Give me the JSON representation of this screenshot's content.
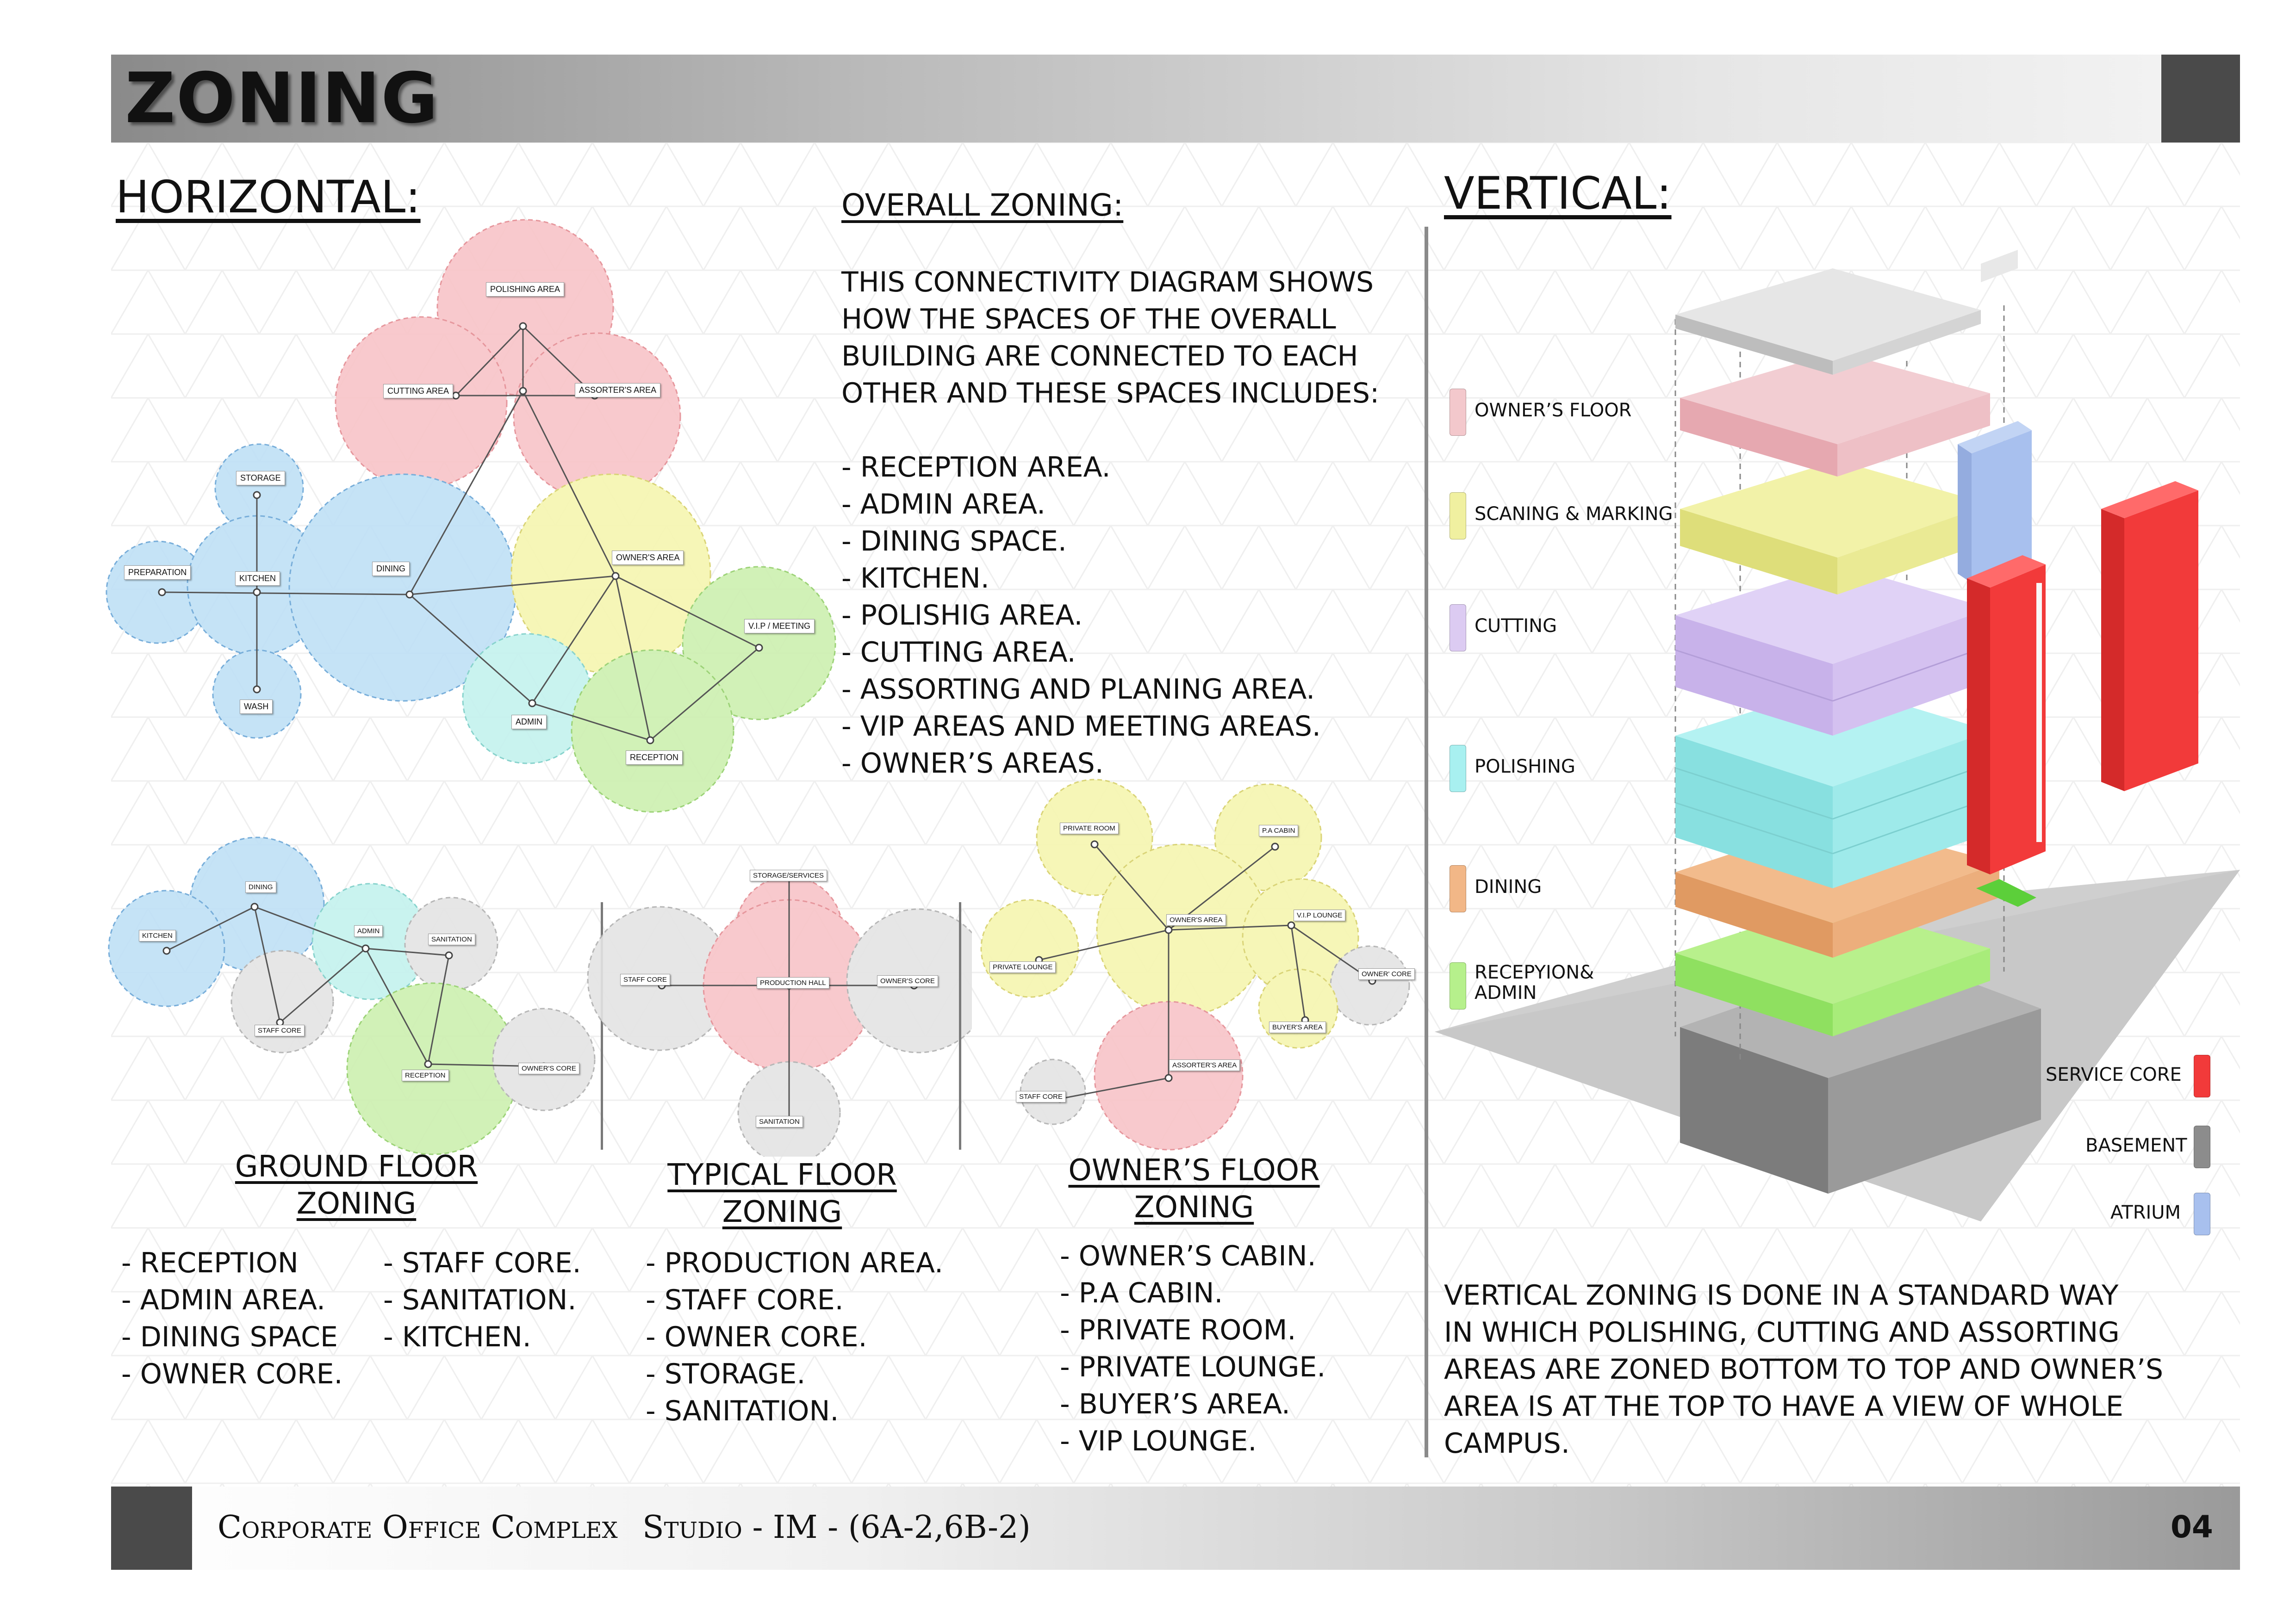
{
  "header": {
    "title": "ZONING"
  },
  "horizontal": {
    "heading": "HORIZONTAL:",
    "overall": {
      "title": "OVERALL ZONING:",
      "paragraph": "THIS CONNECTIVITY DIAGRAM SHOWS\nHOW THE SPACES OF THE OVERALL\nBUILDING ARE CONNECTED TO EACH\nOTHER AND THESE SPACES INCLUDES:",
      "items": [
        "- RECEPTION AREA.",
        "- ADMIN AREA.",
        "- DINING SPACE.",
        "- KITCHEN.",
        "- POLISHIG AREA.",
        "- CUTTING AREA.",
        "- ASSORTING AND PLANING AREA.",
        "- VIP AREAS AND MEETING AREAS.",
        "- OWNER’S AREAS."
      ]
    },
    "overall_diagram": {
      "labels": {
        "polishing": "POLISHING AREA",
        "cutting": "CUTTING AREA",
        "assorter": "ASSORTER'S AREA",
        "storage": "STORAGE",
        "preparation": "PREPARATION",
        "kitchen": "KITCHEN",
        "dining": "DINING",
        "owners": "OWNER'S AREA",
        "vip": "V.I.P / MEETING",
        "admin": "ADMIN",
        "reception": "RECEPTION",
        "wash": "WASH"
      },
      "colors": {
        "pink": "#f8c4c8",
        "blue": "#bfe0f6",
        "yellow": "#f6f6b0",
        "green": "#cdf0b0",
        "cyan": "#c4f2ee",
        "grey": "#e4e4e4"
      }
    },
    "ground_floor": {
      "title_line1": "GROUND FLOOR",
      "title_line2": "ZONING",
      "labels": {
        "dining": "DINING",
        "kitchen": "KITCHEN",
        "admin": "ADMIN",
        "sanitation": "SANITATION",
        "staff_core": "STAFF CORE",
        "reception": "RECEPTION",
        "owners_core": "OWNER'S CORE"
      },
      "col1": [
        "- RECEPTION",
        "- ADMIN AREA.",
        "- DINING SPACE",
        "- OWNER CORE."
      ],
      "col2": [
        "- STAFF CORE.",
        "- SANITATION.",
        "- KITCHEN."
      ]
    },
    "typical_floor": {
      "title_line1": "TYPICAL FLOOR",
      "title_line2": "ZONING",
      "labels": {
        "storage": "STORAGE/SERVICES",
        "staff_core": "STAFF CORE",
        "production": "PRODUCTION HALL",
        "owners_core": "OWNER'S CORE",
        "sanitation": "SANITATION"
      },
      "items": [
        "- PRODUCTION AREA.",
        "- STAFF CORE.",
        "- OWNER CORE.",
        "- STORAGE.",
        "- SANITATION."
      ]
    },
    "owners_floor": {
      "title_line1": "OWNER’S FLOOR",
      "title_line2": "ZONING",
      "labels": {
        "private_room": "PRIVATE ROOM",
        "pa_cabin": "P.A CABIN",
        "owners_area": "OWNER'S AREA",
        "vip_lounge": "V.I.P LOUNGE",
        "private_lounge": "PRIVATE LOUNGE",
        "owner_core": "OWNER' CORE",
        "buyers_area": "BUYER'S AREA",
        "assorters_area": "ASSORTER'S AREA",
        "staff_core": "STAFF CORE"
      },
      "items": [
        "- OWNER’S CABIN.",
        "- P.A CABIN.",
        "- PRIVATE ROOM.",
        "- PRIVATE LOUNGE.",
        "- BUYER’S AREA.",
        "- VIP LOUNGE."
      ]
    }
  },
  "vertical": {
    "heading": "VERTICAL:",
    "floor_legend": [
      {
        "label": "OWNER’S FLOOR",
        "color": "#f3c8cc"
      },
      {
        "label": "SCANING & MARKING",
        "color": "#f0f0a0"
      },
      {
        "label": "CUTTING",
        "color": "#dccbf2"
      },
      {
        "label": "POLISHING",
        "color": "#a8f0f0"
      },
      {
        "label": "DINING",
        "color": "#f2b787"
      },
      {
        "label": "RECEPYION&\nADMIN",
        "color": "#b6f08c"
      }
    ],
    "type_legend": [
      {
        "label": "SERVICE CORE",
        "color": "#f23a3a"
      },
      {
        "label": "BASEMENT",
        "color": "#8c8c8c"
      },
      {
        "label": "ATRIUM",
        "color": "#a8c0ee"
      }
    ],
    "paragraph": "VERTICAL ZONING IS DONE IN A STANDARD WAY\nIN WHICH POLISHING, CUTTING AND ASSORTING\nAREAS ARE ZONED BOTTOM TO TOP AND OWNER’S\nAREA IS AT THE TOP TO HAVE A VIEW OF WHOLE\nCAMPUS."
  },
  "footer": {
    "project": "Corporate Office Complex",
    "studio": "Studio - IM - (6A-2,6B-2)",
    "page": "04"
  }
}
